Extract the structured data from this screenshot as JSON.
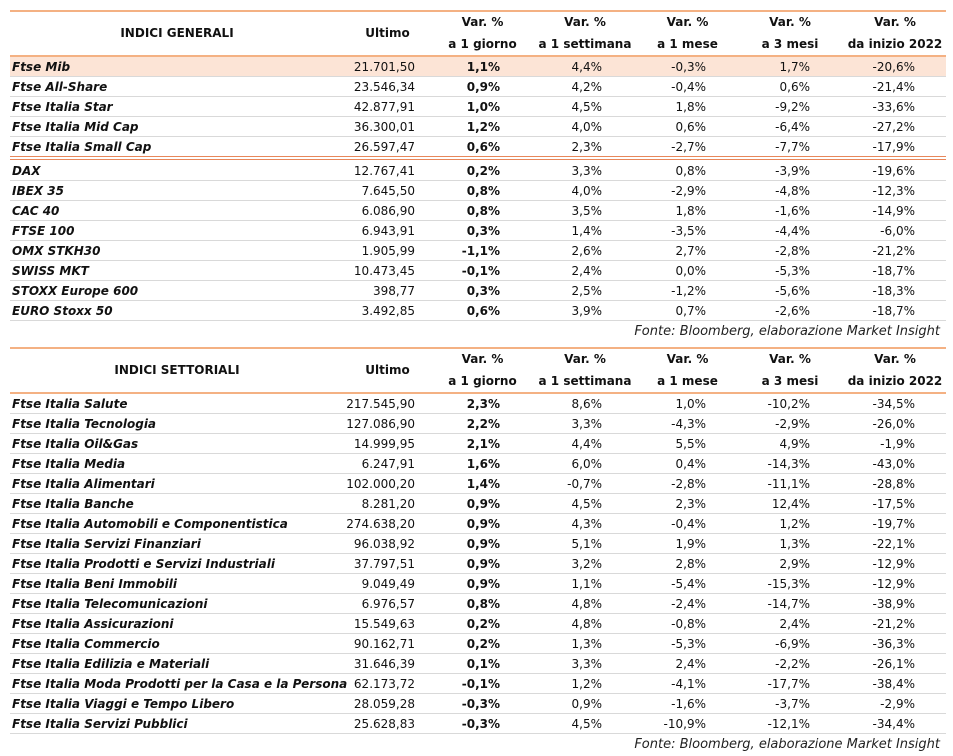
{
  "tables": [
    {
      "header": [
        [
          "INDICI GENERALI"
        ],
        [
          "Ultimo"
        ],
        [
          "Var. %",
          "a 1 giorno"
        ],
        [
          "Var. %",
          "a 1 settimana"
        ],
        [
          "Var. %",
          "a 1 mese"
        ],
        [
          "Var. %",
          "a 3 mesi"
        ],
        [
          "Var. %",
          "da inizio 2022"
        ]
      ],
      "groups": [
        [
          [
            "Ftse Mib",
            "21.701,50",
            "1,1%",
            "4,4%",
            "-0,3%",
            "1,7%",
            "-20,6%"
          ],
          [
            "Ftse All-Share",
            "23.546,34",
            "0,9%",
            "4,2%",
            "-0,4%",
            "0,6%",
            "-21,4%"
          ],
          [
            "Ftse Italia Star",
            "42.877,91",
            "1,0%",
            "4,5%",
            "1,8%",
            "-9,2%",
            "-33,6%"
          ],
          [
            "Ftse Italia Mid Cap",
            "36.300,01",
            "1,2%",
            "4,0%",
            "0,6%",
            "-6,4%",
            "-27,2%"
          ],
          [
            "Ftse Italia Small Cap",
            "26.597,47",
            "0,6%",
            "2,3%",
            "-2,7%",
            "-7,7%",
            "-17,9%"
          ]
        ],
        [
          [
            "DAX",
            "12.767,41",
            "0,2%",
            "3,3%",
            "0,8%",
            "-3,9%",
            "-19,6%"
          ],
          [
            "IBEX 35",
            "7.645,50",
            "0,8%",
            "4,0%",
            "-2,9%",
            "-4,8%",
            "-12,3%"
          ],
          [
            "CAC 40",
            "6.086,90",
            "0,8%",
            "3,5%",
            "1,8%",
            "-1,6%",
            "-14,9%"
          ],
          [
            "FTSE 100",
            "6.943,91",
            "0,3%",
            "1,4%",
            "-3,5%",
            "-4,4%",
            "-6,0%"
          ],
          [
            "OMX STKH30",
            "1.905,99",
            "-1,1%",
            "2,6%",
            "2,7%",
            "-2,8%",
            "-21,2%"
          ],
          [
            "SWISS MKT",
            "10.473,45",
            "-0,1%",
            "2,4%",
            "0,0%",
            "-5,3%",
            "-18,7%"
          ],
          [
            "STOXX Europe 600",
            "398,77",
            "0,3%",
            "2,5%",
            "-1,2%",
            "-5,6%",
            "-18,3%"
          ],
          [
            "EURO Stoxx 50",
            "3.492,85",
            "0,6%",
            "3,9%",
            "0,7%",
            "-2,6%",
            "-18,7%"
          ]
        ]
      ],
      "source": "Fonte: Bloomberg, elaborazione Market Insight"
    },
    {
      "header": [
        [
          "INDICI SETTORIALI"
        ],
        [
          "Ultimo"
        ],
        [
          "Var. %",
          "a 1 giorno"
        ],
        [
          "Var. %",
          "a 1 settimana"
        ],
        [
          "Var. %",
          "a 1 mese"
        ],
        [
          "Var. %",
          "a 3 mesi"
        ],
        [
          "Var. %",
          "da inizio 2022"
        ]
      ],
      "groups": [
        [
          [
            "Ftse Italia Salute",
            "217.545,90",
            "2,3%",
            "8,6%",
            "1,0%",
            "-10,2%",
            "-34,5%"
          ],
          [
            "Ftse Italia Tecnologia",
            "127.086,90",
            "2,2%",
            "3,3%",
            "-4,3%",
            "-2,9%",
            "-26,0%"
          ],
          [
            "Ftse Italia Oil&Gas",
            "14.999,95",
            "2,1%",
            "4,4%",
            "5,5%",
            "4,9%",
            "-1,9%"
          ],
          [
            "Ftse Italia Media",
            "6.247,91",
            "1,6%",
            "6,0%",
            "0,4%",
            "-14,3%",
            "-43,0%"
          ],
          [
            "Ftse Italia Alimentari",
            "102.000,20",
            "1,4%",
            "-0,7%",
            "-2,8%",
            "-11,1%",
            "-28,8%"
          ],
          [
            "Ftse Italia Banche",
            "8.281,20",
            "0,9%",
            "4,5%",
            "2,3%",
            "12,4%",
            "-17,5%"
          ],
          [
            "Ftse Italia Automobili e Componentistica",
            "274.638,20",
            "0,9%",
            "4,3%",
            "-0,4%",
            "1,2%",
            "-19,7%"
          ],
          [
            "Ftse Italia Servizi Finanziari",
            "96.038,92",
            "0,9%",
            "5,1%",
            "1,9%",
            "1,3%",
            "-22,1%"
          ],
          [
            "Ftse Italia Prodotti e Servizi Industriali",
            "37.797,51",
            "0,9%",
            "3,2%",
            "2,8%",
            "2,9%",
            "-12,9%"
          ],
          [
            "Ftse Italia Beni Immobili",
            "9.049,49",
            "0,9%",
            "1,1%",
            "-5,4%",
            "-15,3%",
            "-12,9%"
          ],
          [
            "Ftse Italia Telecomunicazioni",
            "6.976,57",
            "0,8%",
            "4,8%",
            "-2,4%",
            "-14,7%",
            "-38,9%"
          ],
          [
            "Ftse Italia Assicurazioni",
            "15.549,63",
            "0,2%",
            "4,8%",
            "-0,8%",
            "2,4%",
            "-21,2%"
          ],
          [
            "Ftse Italia Commercio",
            "90.162,71",
            "0,2%",
            "1,3%",
            "-5,3%",
            "-6,9%",
            "-36,3%"
          ],
          [
            "Ftse Italia Edilizia e Materiali",
            "31.646,39",
            "0,1%",
            "3,3%",
            "2,4%",
            "-2,2%",
            "-26,1%"
          ],
          [
            "Ftse Italia Moda Prodotti per la Casa e la Persona",
            "62.173,72",
            "-0,1%",
            "1,2%",
            "-4,1%",
            "-17,7%",
            "-38,4%"
          ],
          [
            "Ftse Italia Viaggi e Tempo Libero",
            "28.059,28",
            "-0,3%",
            "0,9%",
            "-1,6%",
            "-3,7%",
            "-2,9%"
          ],
          [
            "Ftse Italia Servizi Pubblici",
            "25.628,83",
            "-0,3%",
            "4,5%",
            "-10,9%",
            "-12,1%",
            "-34,4%"
          ]
        ]
      ],
      "source": "Fonte: Bloomberg, elaborazione Market Insight"
    }
  ]
}
